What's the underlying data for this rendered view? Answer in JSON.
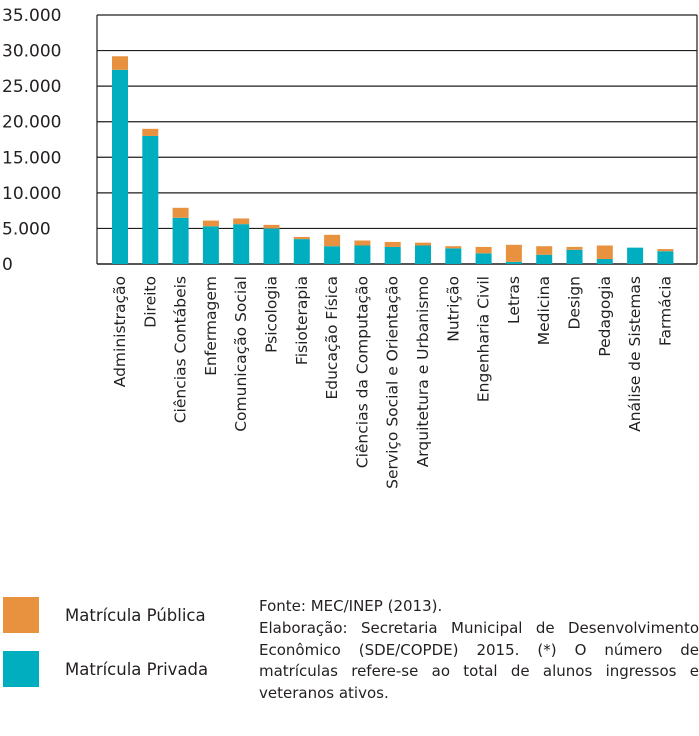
{
  "colors": {
    "public": "#e8913f",
    "private": "#00aebf",
    "grid": "#1f1f1f"
  },
  "legend": {
    "public_label": "Matrícula Pública",
    "private_label": "Matrícula Privada"
  },
  "note": {
    "source": "Fonte: MEC/INEP (2013).",
    "elaboration": "Elaboração: Secretaria Municipal de Desenvolvimento Econômico (SDE/COPDE) 2015. (*) O número de matrículas refere-se ao total de alunos ingressos e veteranos ativos."
  },
  "chart_data": {
    "type": "bar",
    "stacked": true,
    "categories": [
      "Administração",
      "Direito",
      "Ciências Contábeis",
      "Enfermagem",
      "Comunicação Social",
      "Psicologia",
      "Fisioterapia",
      "Educação Física",
      "Ciências da Computação",
      "Serviço Social e Orientação",
      "Arquitetura e Urbanismo",
      "Nutrição",
      "Engenharia Civil",
      "Letras",
      "Medicina",
      "Design",
      "Pedagogia",
      "Análise de Sistemas",
      "Farmácia"
    ],
    "series": [
      {
        "name": "Matrícula Privada",
        "values": [
          27300,
          18000,
          6500,
          5300,
          5600,
          5000,
          3500,
          2500,
          2600,
          2400,
          2600,
          2200,
          1500,
          300,
          1300,
          2000,
          700,
          2300,
          1800
        ]
      },
      {
        "name": "Matrícula Pública",
        "values": [
          1900,
          1000,
          1400,
          800,
          800,
          500,
          300,
          1600,
          700,
          700,
          400,
          300,
          900,
          2400,
          1200,
          400,
          1900,
          0,
          300
        ]
      }
    ],
    "yticks": [
      "35.000",
      "30.000",
      "25.000",
      "20.000",
      "15.000",
      "10.000",
      "5.000",
      "0"
    ],
    "ylim": [
      0,
      35000
    ],
    "grid": true
  }
}
